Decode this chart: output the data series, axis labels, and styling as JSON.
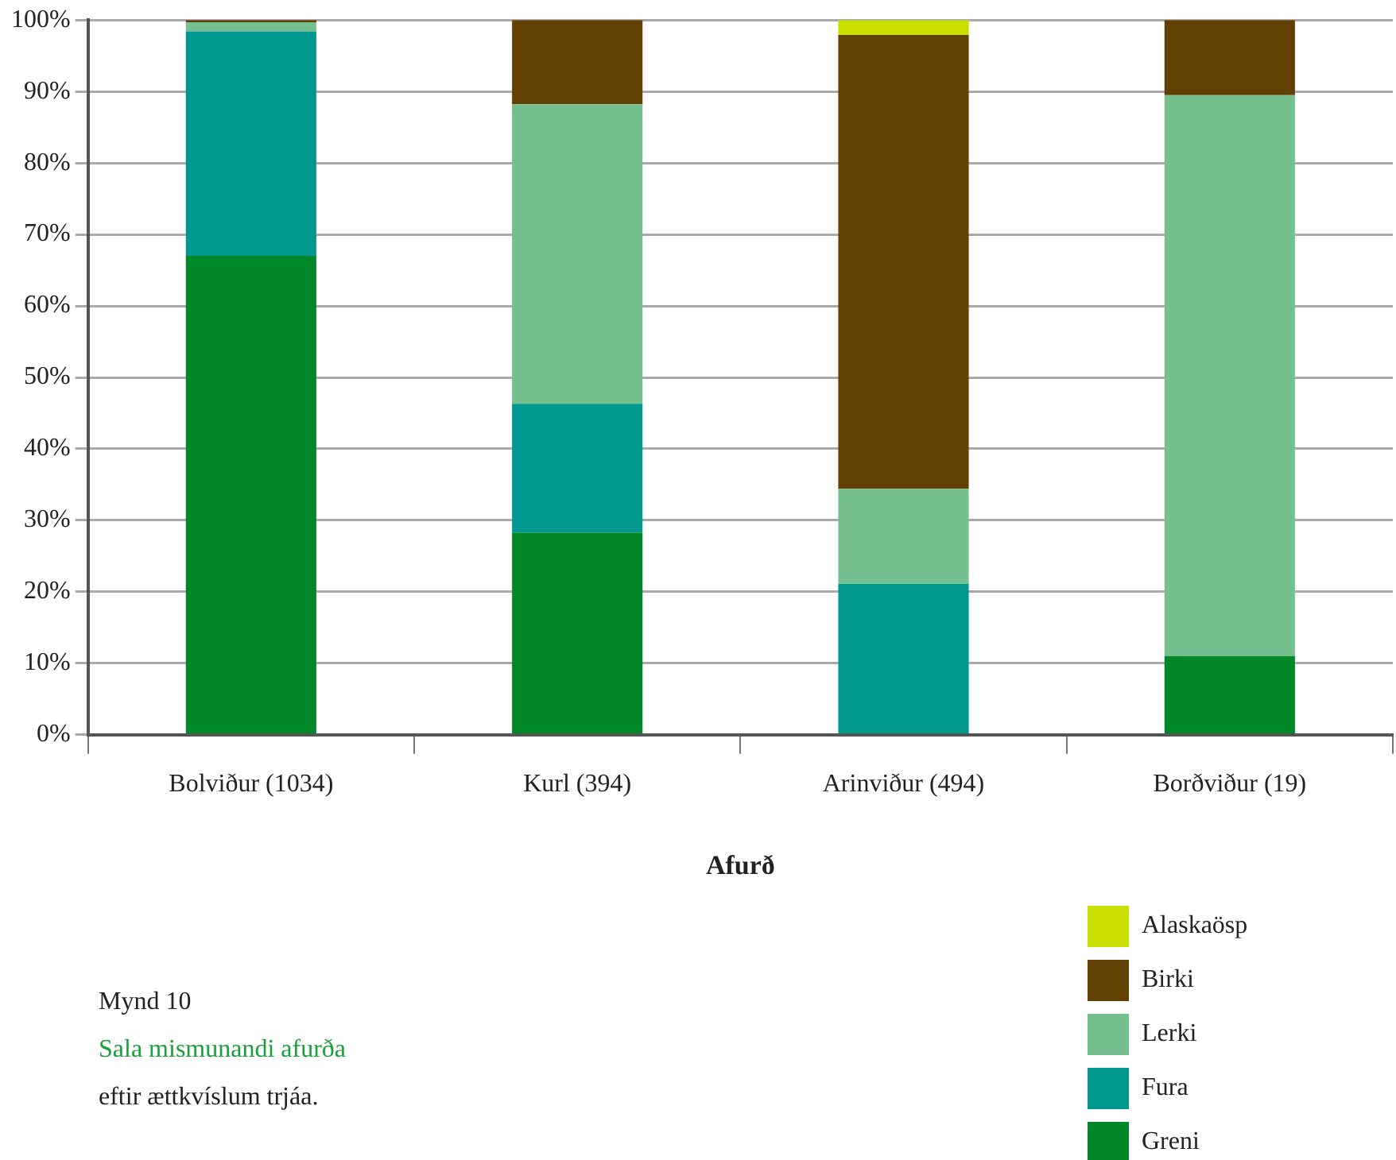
{
  "chart_data": {
    "type": "bar",
    "stacked": true,
    "xlabel": "Afurð",
    "categories": [
      "Bolviður (1034)",
      "Kurl (394)",
      "Arinviður (494)",
      "Borðviður (19)"
    ],
    "series": [
      {
        "name": "Greni",
        "color": "#00872a",
        "values": [
          67,
          28.3,
          0,
          11
        ]
      },
      {
        "name": "Fura",
        "color": "#00978f",
        "values": [
          31.4,
          18,
          21.1,
          0
        ]
      },
      {
        "name": "Lerki",
        "color": "#76bf8f",
        "values": [
          1.3,
          41.9,
          13.3,
          78.5
        ]
      },
      {
        "name": "Birki",
        "color": "#623f03",
        "values": [
          0.3,
          11.8,
          63.5,
          10.5
        ]
      },
      {
        "name": "Alaskaösp",
        "color": "#c9df00",
        "values": [
          0,
          0,
          2.1,
          0
        ]
      }
    ],
    "ylim": [
      0,
      100
    ],
    "yticks": [
      {
        "value": 0,
        "label": "0%"
      },
      {
        "value": 10,
        "label": "10%"
      },
      {
        "value": 20,
        "label": "20%"
      },
      {
        "value": 30,
        "label": "30%"
      },
      {
        "value": 40,
        "label": "40%"
      },
      {
        "value": 50,
        "label": "50%"
      },
      {
        "value": 60,
        "label": "60%"
      },
      {
        "value": 70,
        "label": "70%"
      },
      {
        "value": 80,
        "label": "80%"
      },
      {
        "value": 90,
        "label": "90%"
      },
      {
        "value": 100,
        "label": "100%"
      }
    ],
    "grid": "y",
    "legend": "bottom right",
    "annotations": [
      "Mynd 10",
      "Sala mismunandi afurða",
      "eftir ættkvíslum trjáa."
    ]
  }
}
